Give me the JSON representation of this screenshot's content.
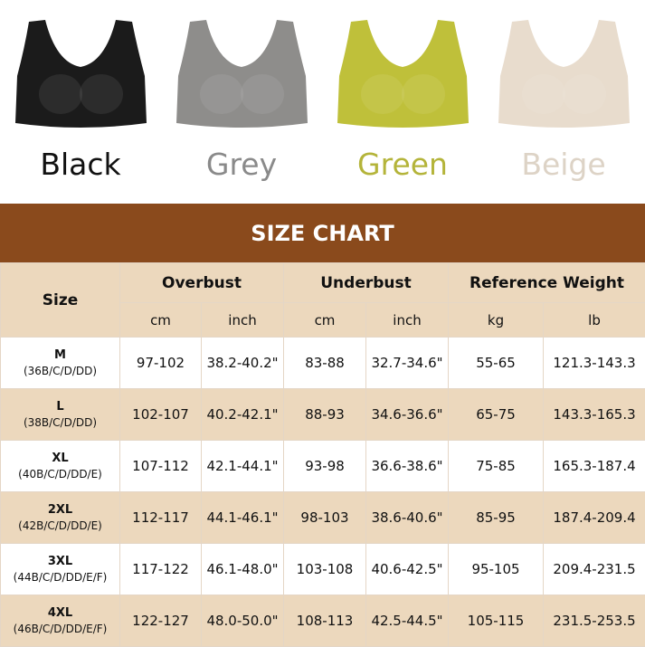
{
  "colors": [
    {
      "label": "Black",
      "hex": "#1b1b1b",
      "text_color": "#111111"
    },
    {
      "label": "Grey",
      "hex": "#8e8d8b",
      "text_color": "#8a8a8a"
    },
    {
      "label": "Green",
      "hex": "#bfc03a",
      "text_color": "#b4b43a"
    },
    {
      "label": "Beige",
      "hex": "#e8dccd",
      "text_color": "#ddd3c6"
    }
  ],
  "title": "SIZE CHART",
  "header": {
    "size": "Size",
    "groups": [
      "Overbust",
      "Underbust",
      "Reference Weight"
    ],
    "units": [
      "cm",
      "inch",
      "cm",
      "inch",
      "kg",
      "lb"
    ]
  },
  "chart_data": {
    "type": "table",
    "title": "SIZE CHART",
    "rows": [
      {
        "size": "M",
        "cups": "(36B/C/D/DD)",
        "values": [
          "97-102",
          "38.2-40.2\"",
          "83-88",
          "32.7-34.6\"",
          "55-65",
          "121.3-143.3"
        ]
      },
      {
        "size": "L",
        "cups": "(38B/C/D/DD)",
        "values": [
          "102-107",
          "40.2-42.1\"",
          "88-93",
          "34.6-36.6\"",
          "65-75",
          "143.3-165.3"
        ]
      },
      {
        "size": "XL",
        "cups": "(40B/C/D/DD/E)",
        "values": [
          "107-112",
          "42.1-44.1\"",
          "93-98",
          "36.6-38.6\"",
          "75-85",
          "165.3-187.4"
        ]
      },
      {
        "size": "2XL",
        "cups": "(42B/C/D/DD/E)",
        "values": [
          "112-117",
          "44.1-46.1\"",
          "98-103",
          "38.6-40.6\"",
          "85-95",
          "187.4-209.4"
        ]
      },
      {
        "size": "3XL",
        "cups": "(44B/C/D/DD/E/F)",
        "values": [
          "117-122",
          "46.1-48.0\"",
          "103-108",
          "40.6-42.5\"",
          "95-105",
          "209.4-231.5"
        ]
      },
      {
        "size": "4XL",
        "cups": "(46B/C/D/DD/E/F)",
        "values": [
          "122-127",
          "48.0-50.0\"",
          "108-113",
          "42.5-44.5\"",
          "105-115",
          "231.5-253.5"
        ]
      }
    ]
  }
}
